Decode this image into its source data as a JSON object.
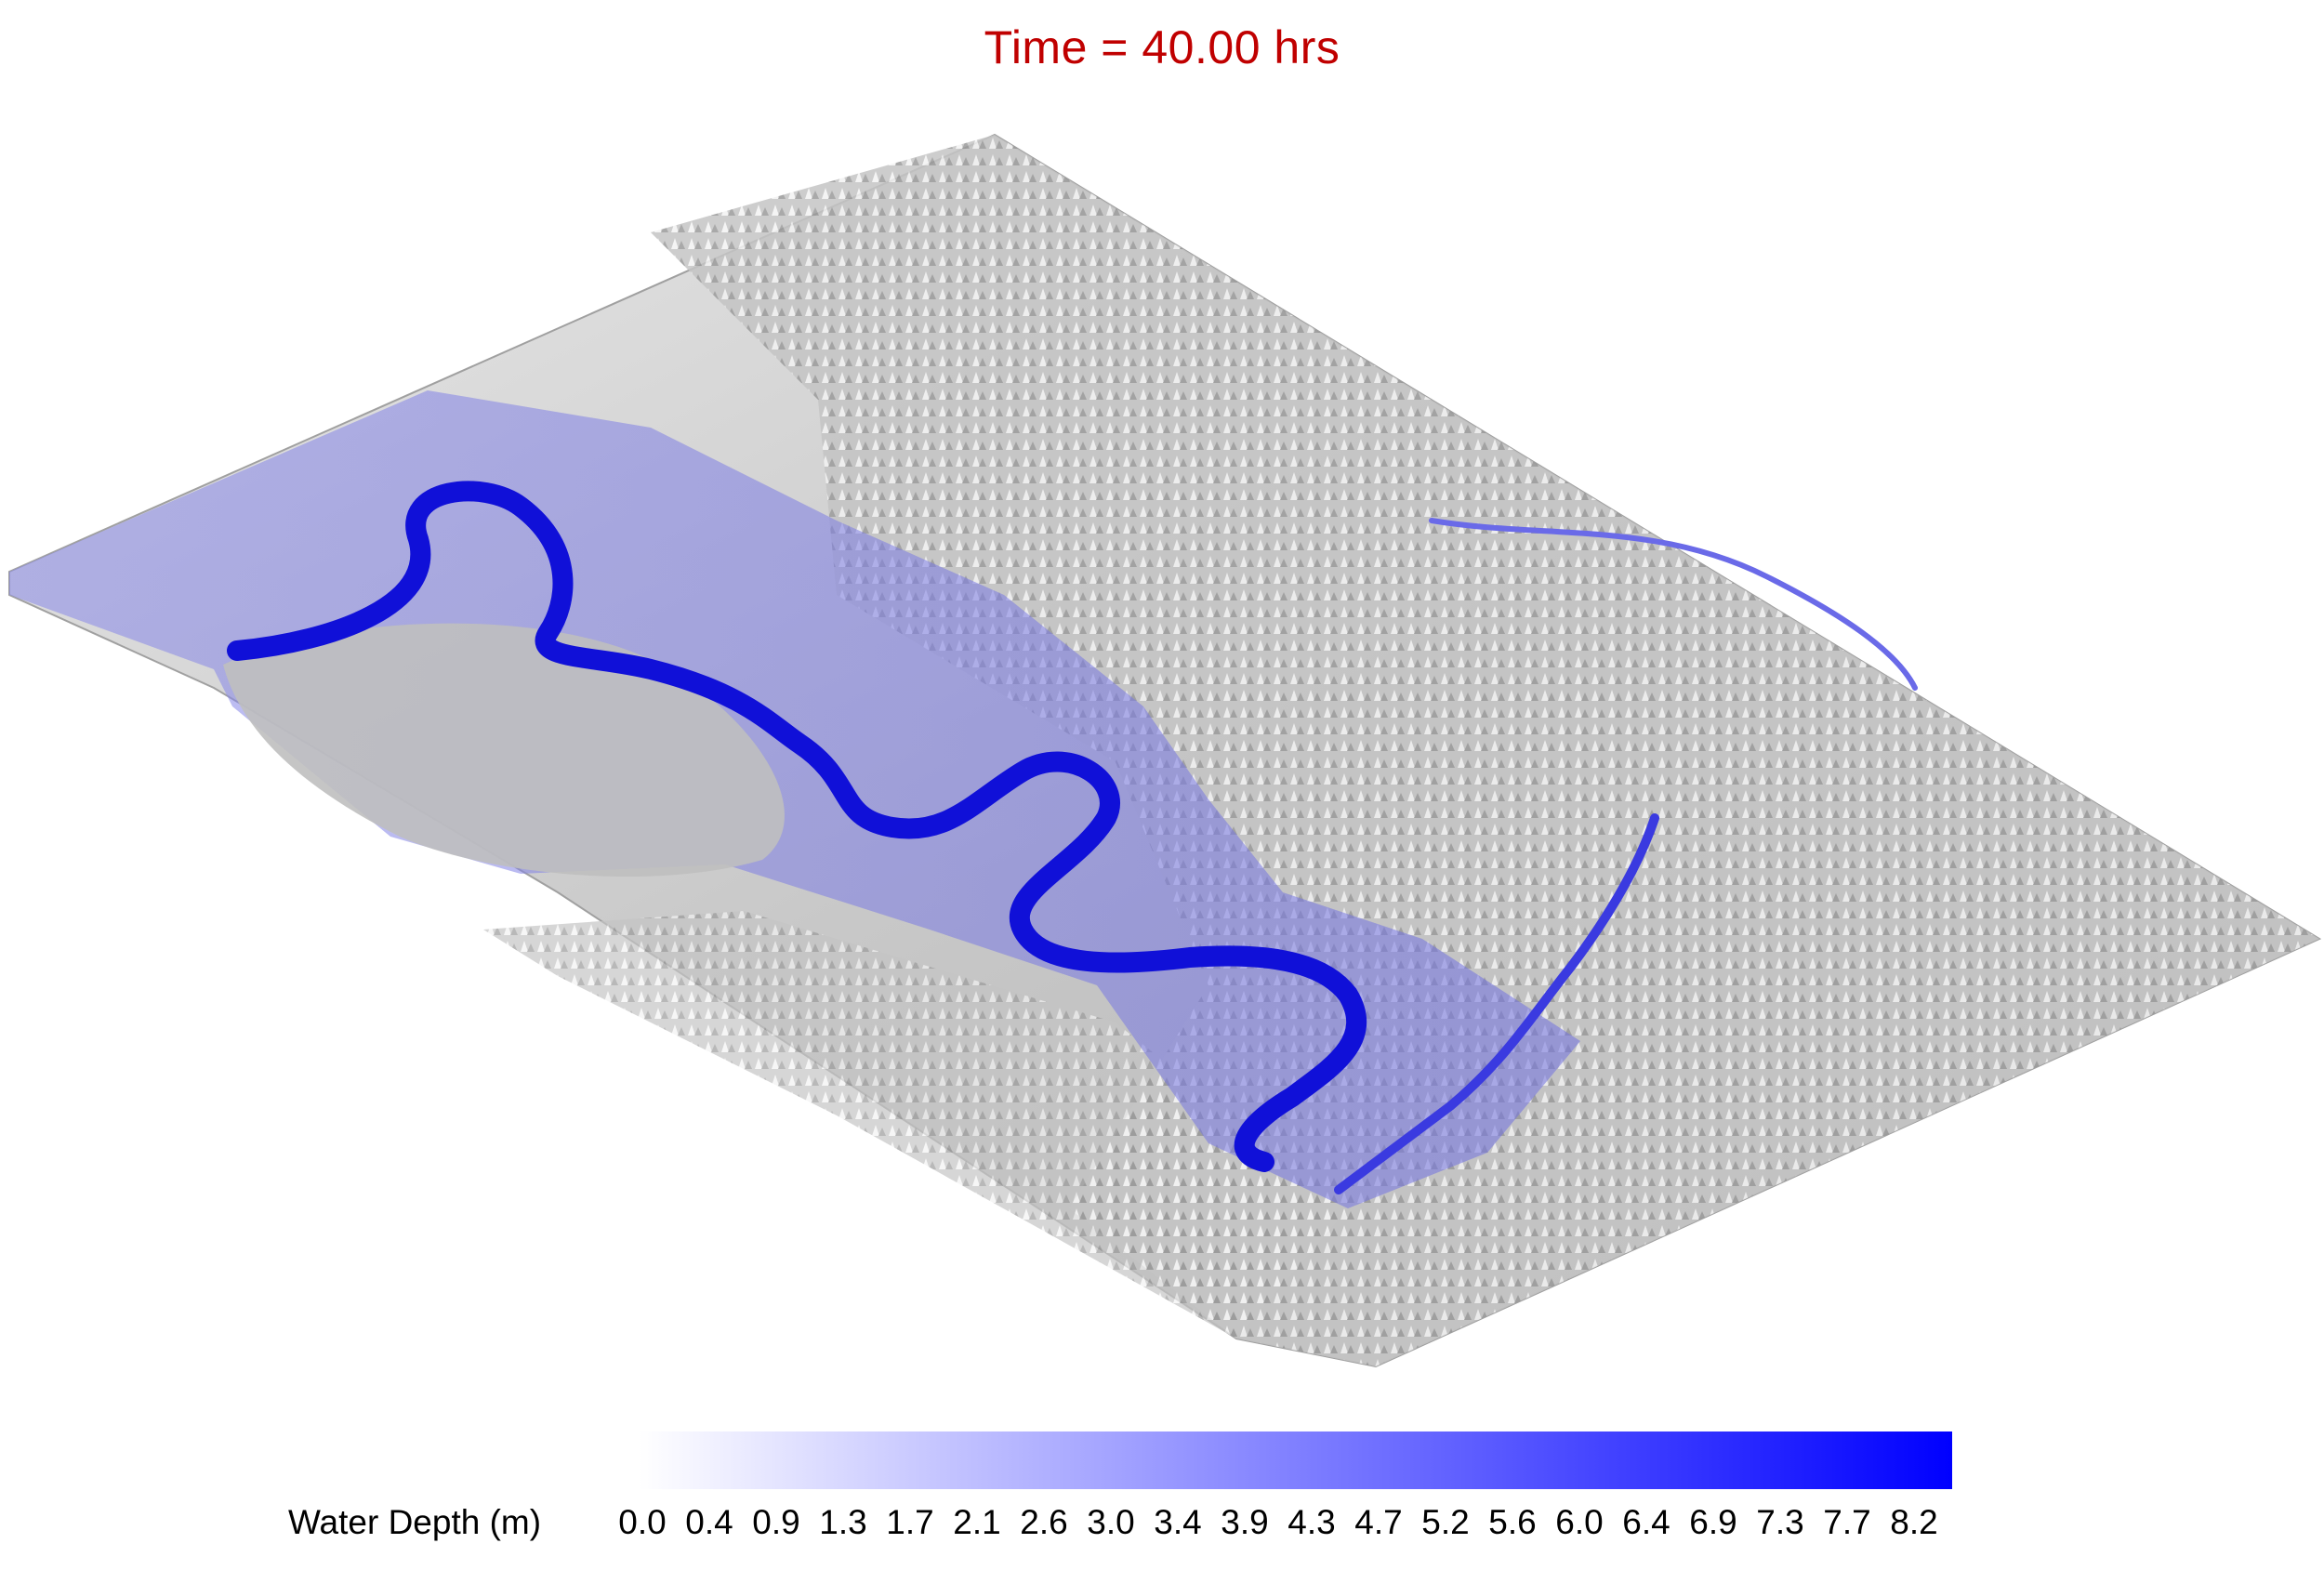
{
  "title": "Time = 40.00 hrs",
  "colors": {
    "title": "#c00000",
    "water_low": "#ffffff",
    "water_high": "#0000ff",
    "terrain": "#bdbdbd"
  },
  "legend": {
    "label": "Water Depth (m)",
    "ticks": [
      "0.0",
      "0.4",
      "0.9",
      "1.3",
      "1.7",
      "2.1",
      "2.6",
      "3.0",
      "3.4",
      "3.9",
      "4.3",
      "4.7",
      "5.2",
      "5.6",
      "6.0",
      "6.4",
      "6.9",
      "7.3",
      "7.7",
      "8.2"
    ]
  }
}
